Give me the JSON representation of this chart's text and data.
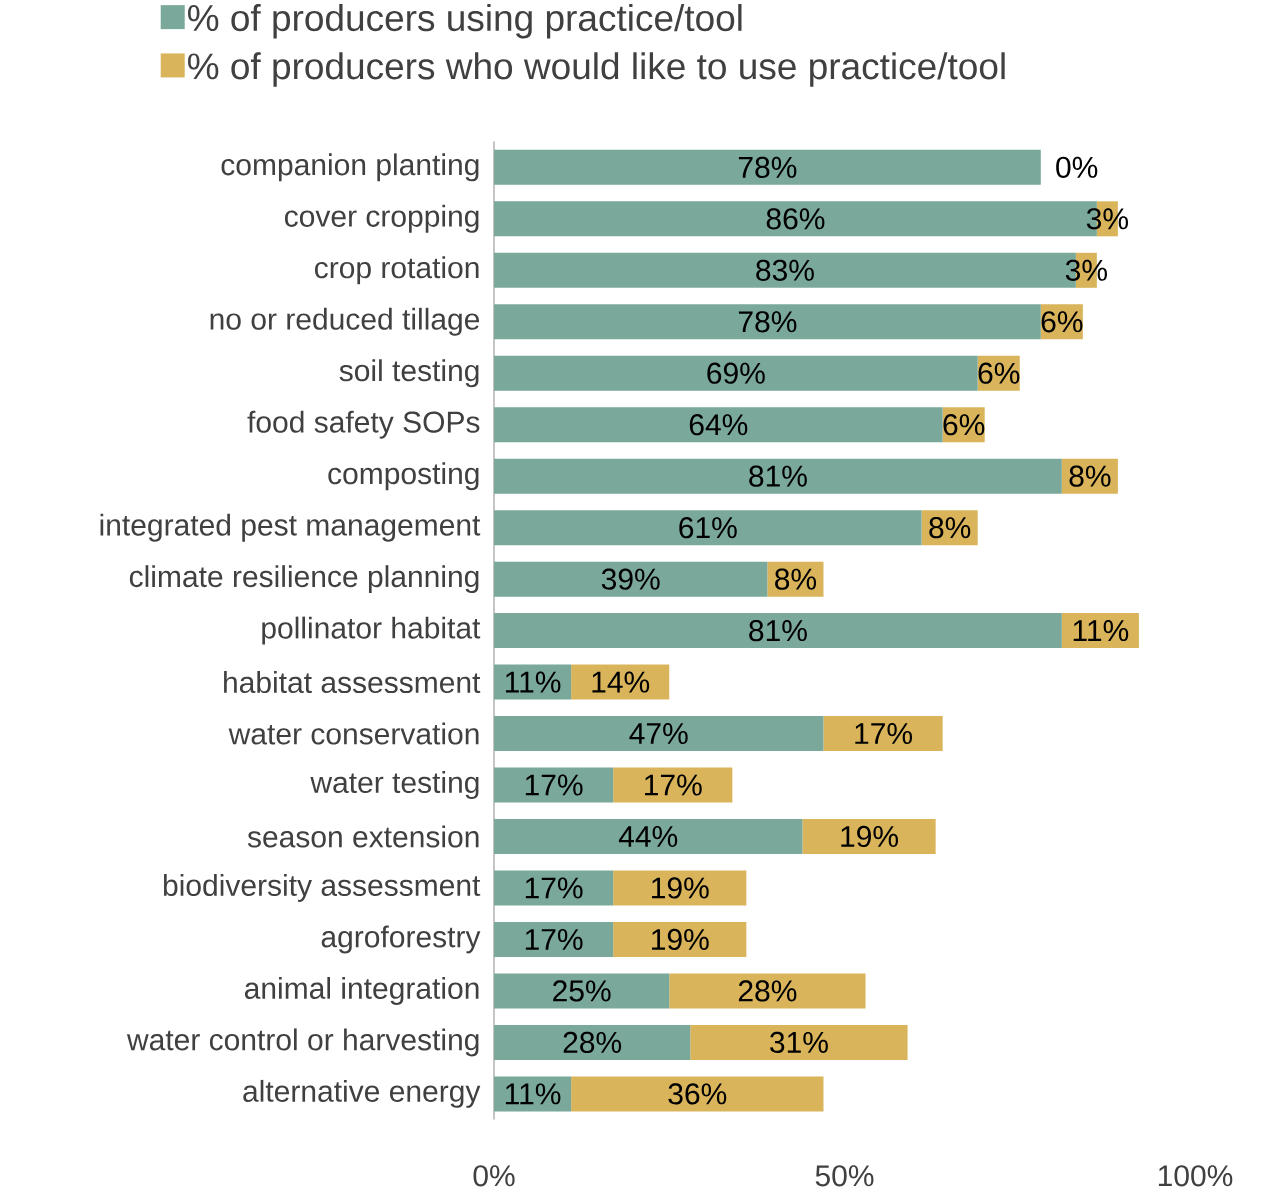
{
  "chart_data": {
    "type": "bar",
    "orientation": "horizontal",
    "stacked": true,
    "legend": "top",
    "categories": [
      "companion planting",
      "cover cropping",
      "crop rotation",
      "no or reduced tillage",
      "soil testing",
      "food safety SOPs",
      "composting",
      "integrated pest management",
      "climate resilience planning",
      "pollinator habitat",
      "habitat assessment",
      "water conservation",
      "water testing",
      "season extension",
      "biodiversity assessment",
      "agroforestry",
      "animal integration",
      "water control or harvesting",
      "alternative energy"
    ],
    "series": [
      {
        "name": "% of producers using practice/tool",
        "color": "#7aa89b",
        "values": [
          78,
          86,
          83,
          78,
          69,
          64,
          81,
          61,
          39,
          81,
          11,
          47,
          17,
          44,
          17,
          17,
          25,
          28,
          11
        ],
        "value_labels": [
          "78%",
          "86%",
          "83%",
          "78%",
          "69%",
          "64%",
          "81%",
          "61%",
          "39%",
          "81%",
          "11%",
          "47%",
          "17%",
          "44%",
          "17%",
          "17%",
          "25%",
          "28%",
          "11%"
        ]
      },
      {
        "name": "% of producers who would like to use practice/tool",
        "color": "#d9b45a",
        "values": [
          0,
          3,
          3,
          6,
          6,
          6,
          8,
          8,
          8,
          11,
          14,
          17,
          17,
          19,
          19,
          19,
          28,
          31,
          36
        ],
        "value_labels": [
          "0%",
          "3%",
          "3%",
          "6%",
          "6%",
          "6%",
          "8%",
          "8%",
          "8%",
          "11%",
          "14%",
          "17%",
          "17%",
          "19%",
          "19%",
          "19%",
          "28%",
          "31%",
          "36%"
        ]
      }
    ],
    "xlim": [
      0,
      100
    ],
    "xticks": [
      {
        "value": 0,
        "label": "0%"
      },
      {
        "value": 50,
        "label": "50%"
      },
      {
        "value": 100,
        "label": "100%"
      }
    ]
  }
}
